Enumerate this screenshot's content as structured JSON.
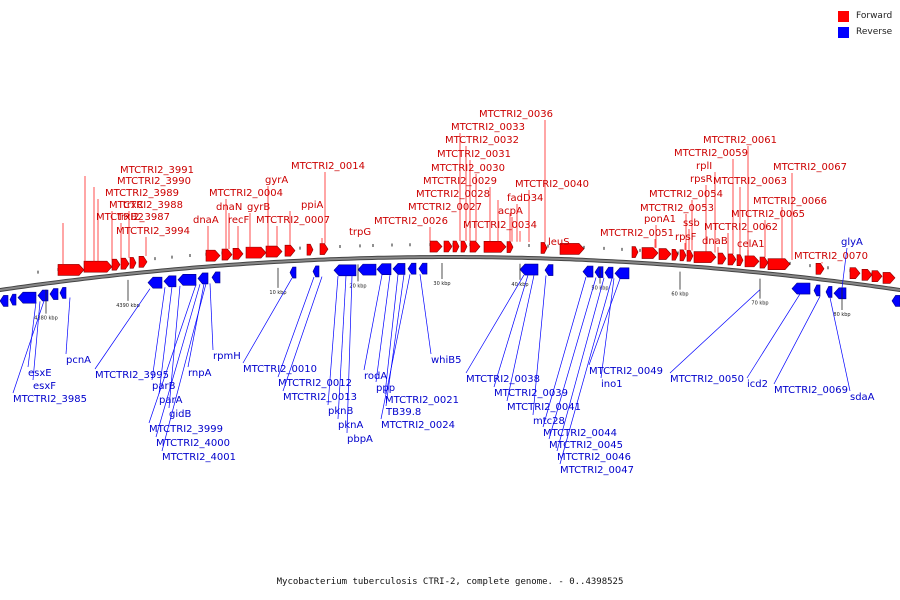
{
  "legend": {
    "forward_label": "Forward",
    "reverse_label": "Reverse",
    "forward_color": "#ff0000",
    "reverse_color": "#0000ff"
  },
  "caption": "Mycobacterium tuberculosis CTRI-2, complete genome. - 0..4398525",
  "backbone_color": "#888888",
  "scale_ticks": [
    "4380 kbp",
    "4390 kbp",
    "10 kbp",
    "20 kbp",
    "30 kbp",
    "40 kbp",
    "50 kbp",
    "60 kbp",
    "70 kbp",
    "80 kbp"
  ],
  "forward_labels": [
    "MTCTRI2_3991",
    "MTCTRI2_3990",
    "MTCTRI2_3989",
    "MTCTRI2_3988",
    "MTCTRI2_3987",
    "trxC",
    "trxB2",
    "MTCTRI2_3994",
    "dnaA",
    "dnaN",
    "recF",
    "gyrB",
    "gyrA",
    "MTCTRI2_0004",
    "MTCTRI2_0007",
    "ppiA",
    "MTCTRI2_0014",
    "trpG",
    "MTCTRI2_0036",
    "MTCTRI2_0033",
    "MTCTRI2_0032",
    "MTCTRI2_0031",
    "MTCTRI2_0030",
    "MTCTRI2_0029",
    "MTCTRI2_0028",
    "MTCTRI2_0027",
    "MTCTRI2_0026",
    "MTCTRI2_0034",
    "acpA",
    "fadD34",
    "MTCTRI2_0040",
    "leuS",
    "MTCTRI2_0061",
    "MTCTRI2_0059",
    "rplI",
    "rpsR",
    "MTCTRI2_0054",
    "MTCTRI2_0053",
    "ssb",
    "rpsF",
    "ponA1",
    "MTCTRI2_0051",
    "dnaB",
    "MTCTRI2_0063",
    "MTCTRI2_0062",
    "MTCTRI2_0067",
    "MTCTRI2_0066",
    "MTCTRI2_0065",
    "celA1",
    "MTCTRI2_0070"
  ],
  "reverse_labels": [
    "pcnA",
    "esxE",
    "esxF",
    "MTCTRI2_3985",
    "MTCTRI2_3995",
    "parB",
    "parA",
    "gidB",
    "MTCTRI2_3999",
    "MTCTRI2_4000",
    "MTCTRI2_4001",
    "rnpA",
    "rpmH",
    "MTCTRI2_0010",
    "MTCTRI2_0012",
    "MTCTRI2_0013",
    "pknB",
    "pknA",
    "pbpA",
    "rodA",
    "ppp",
    "MTCTRI2_0021",
    "TB39.8",
    "MTCTRI2_0024",
    "whiB5",
    "MTCTRI2_0038",
    "MTCTRI2_0039",
    "MTCTRI2_0041",
    "mtc28",
    "MTCTRI2_0044",
    "MTCTRI2_0045",
    "MTCTRI2_0046",
    "MTCTRI2_0047",
    "ino1",
    "MTCTRI2_0049",
    "MTCTRI2_0050",
    "icd2",
    "MTCTRI2_0069",
    "glyA",
    "sdaA"
  ]
}
